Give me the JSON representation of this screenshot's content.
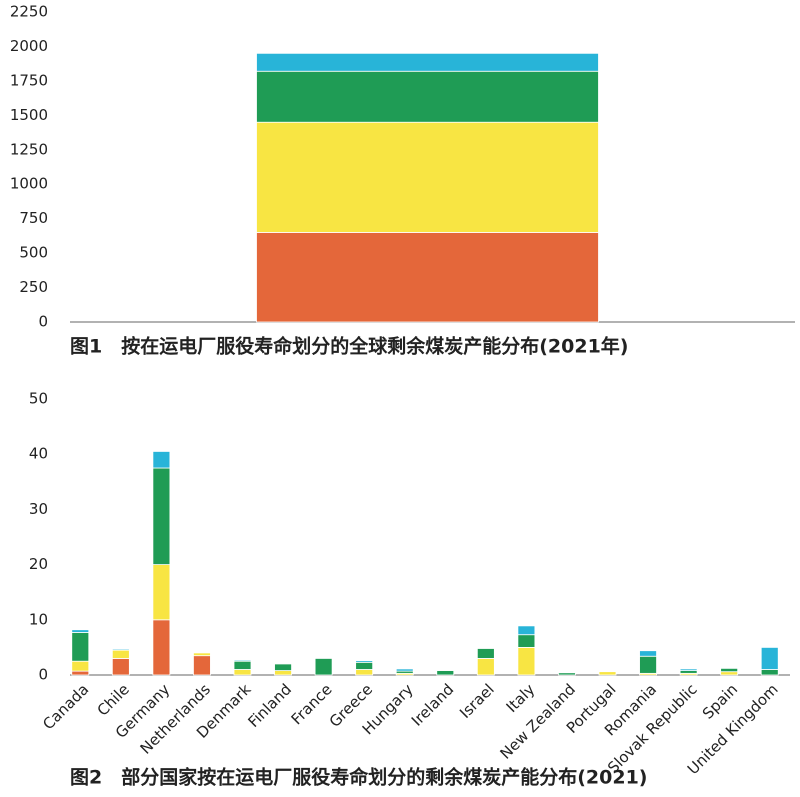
{
  "chart_data": [
    {
      "type": "bar",
      "stacked": true,
      "caption": "图1　按在运电厂服役寿命划分的全球剩余煤炭产能分布(2021年)",
      "categories": [
        null
      ],
      "series": [
        {
          "color": "#e4673a",
          "values": [
            650
          ]
        },
        {
          "color": "#f8e543",
          "values": [
            800
          ]
        },
        {
          "color": "#1f9c55",
          "values": [
            370
          ]
        },
        {
          "color": "#28b4d8",
          "values": [
            130
          ]
        }
      ],
      "ylim": [
        0,
        2250
      ],
      "yticks": [
        0,
        250,
        500,
        750,
        1000,
        1250,
        1500,
        1750,
        2000,
        2250
      ],
      "grid": false
    },
    {
      "type": "bar",
      "stacked": true,
      "caption": "图2　部分国家按在运电厂服役寿命划分的剩余煤炭产能分布(2021)",
      "categories": [
        "Canada",
        "Chile",
        "Germany",
        "Netherlands",
        "Denmark",
        "Finland",
        "France",
        "Greece",
        "Hungary",
        "Ireland",
        "Israel",
        "Italy",
        "New Zealand",
        "Portugal",
        "Romania",
        "Slovak Republic",
        "Spain",
        "United Kingdom"
      ],
      "series": [
        {
          "color": "#e4673a",
          "values": [
            0.7,
            3,
            10,
            3.5,
            0,
            0,
            0,
            0,
            0,
            0,
            0,
            0,
            0,
            0,
            0,
            0,
            0,
            0
          ]
        },
        {
          "color": "#f8e543",
          "values": [
            1.8,
            1.5,
            10,
            0.5,
            1,
            0.8,
            0,
            1,
            0.3,
            0,
            3,
            5,
            0,
            0.6,
            0.3,
            0.3,
            0.6,
            0
          ]
        },
        {
          "color": "#1f9c55",
          "values": [
            5.2,
            0,
            17.5,
            0,
            1.5,
            1.2,
            3,
            1.3,
            0.4,
            0.8,
            1.8,
            2.3,
            0.4,
            0,
            3.1,
            0.5,
            0.6,
            1
          ]
        },
        {
          "color": "#28b4d8",
          "values": [
            0.5,
            0.2,
            3,
            0,
            0.2,
            0,
            0,
            0.3,
            0.4,
            0,
            0,
            1.6,
            0,
            0,
            1,
            0.3,
            0,
            4
          ]
        }
      ],
      "ylim": [
        0,
        50
      ],
      "yticks": [
        0,
        10,
        20,
        30,
        40,
        50
      ],
      "grid": false
    }
  ]
}
